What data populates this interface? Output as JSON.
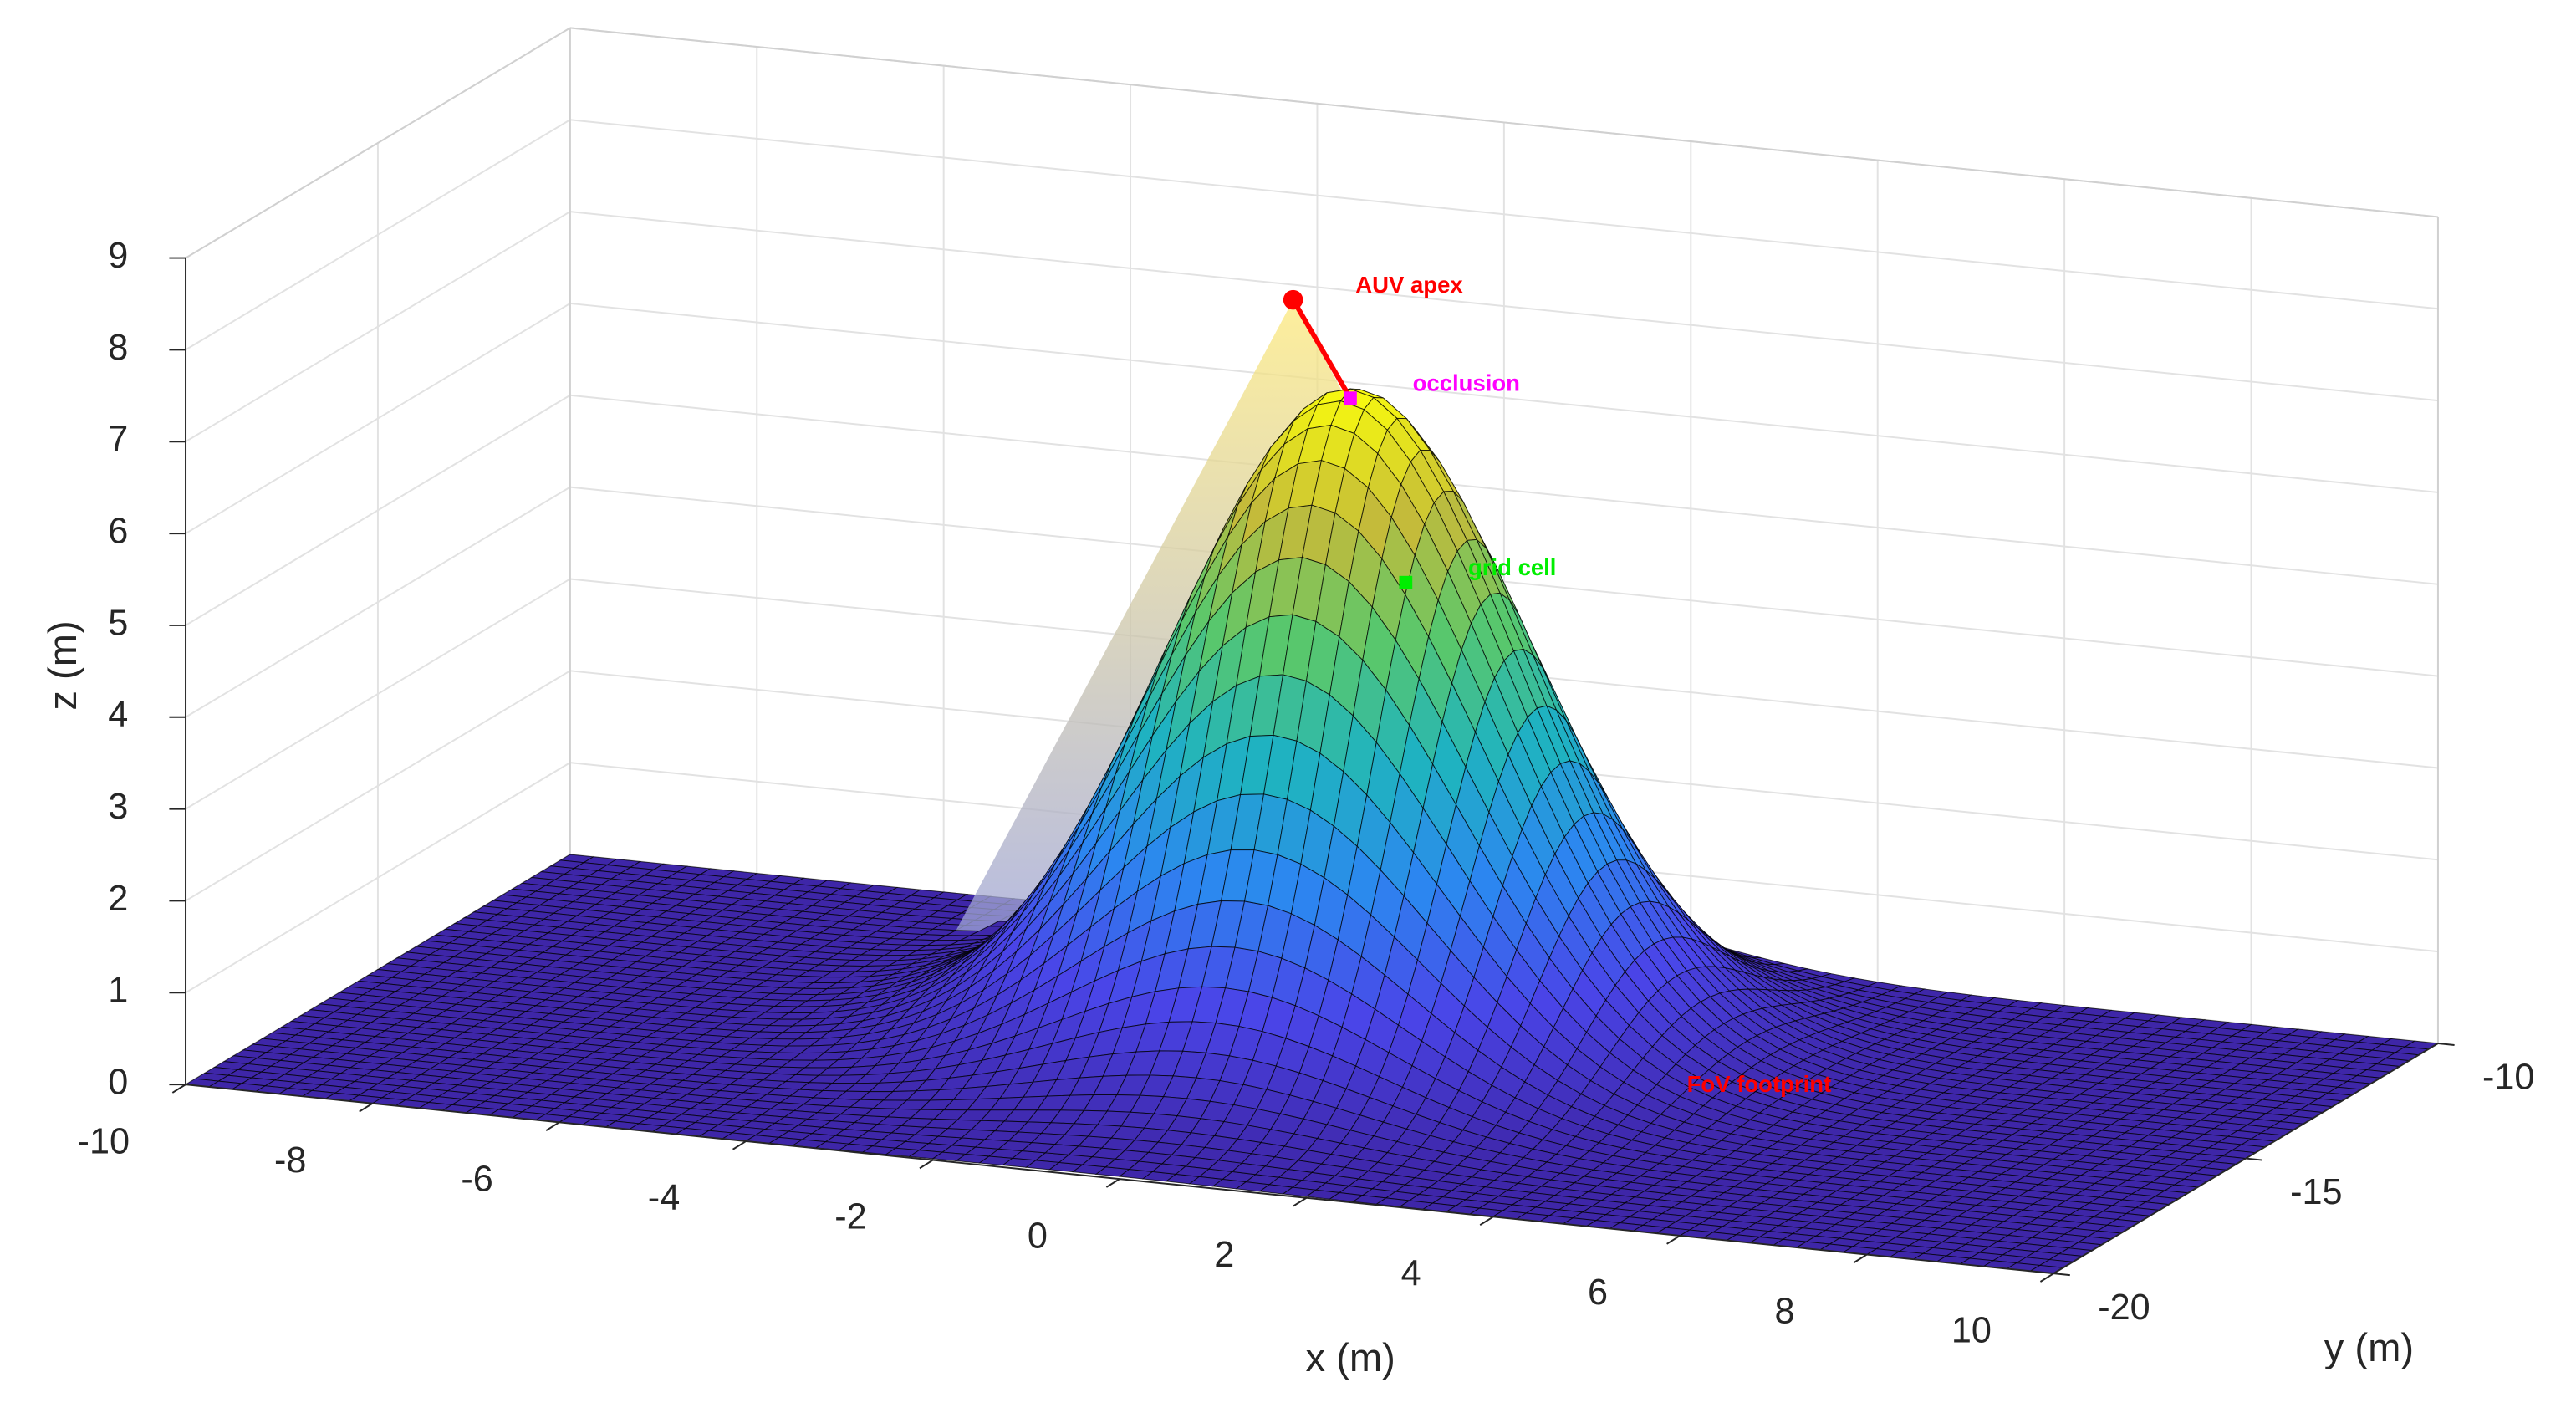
{
  "chart_data": {
    "type": "surface3d",
    "xlabel": "x (m)",
    "ylabel": "y (m)",
    "zlabel": "z (m)",
    "xlim": [
      -10,
      10
    ],
    "ylim": [
      -20,
      -10
    ],
    "zlim": [
      0,
      9
    ],
    "xticks": [
      -10,
      -8,
      -6,
      -4,
      -2,
      0,
      2,
      4,
      6,
      8,
      10
    ],
    "yticks": [
      -20,
      -15,
      -10
    ],
    "zticks": [
      0,
      1,
      2,
      3,
      4,
      5,
      6,
      7,
      8,
      9
    ],
    "grid": true,
    "surface": {
      "peak_x": 0,
      "peak_y": -14,
      "peak_height": 7.1,
      "spread": 1.8,
      "colormap": [
        "#3e26a8",
        "#4a45e8",
        "#2c87f0",
        "#1fb3c0",
        "#5ac86b",
        "#c4bb3a",
        "#f9fb0e"
      ],
      "edge_color": "#000000"
    },
    "cone_colors": [
      "#fde97a",
      "#7c8cf7"
    ],
    "footprint": {
      "name": "FoV footprint",
      "center_x": -0.2,
      "center_y": -15,
      "radius": 4,
      "color": "#ff0000"
    },
    "points": [
      {
        "name": "AUV apex",
        "x": -0.2,
        "y": -15,
        "z": 8.3,
        "color": "#ff0000"
      },
      {
        "name": "occlusion",
        "x": 0,
        "y": -14,
        "z": 7,
        "color": "#ff00ff"
      },
      {
        "name": "grid cell",
        "x": 0.8,
        "y": -14.5,
        "z": 5.2,
        "color": "#00ee00"
      }
    ]
  }
}
